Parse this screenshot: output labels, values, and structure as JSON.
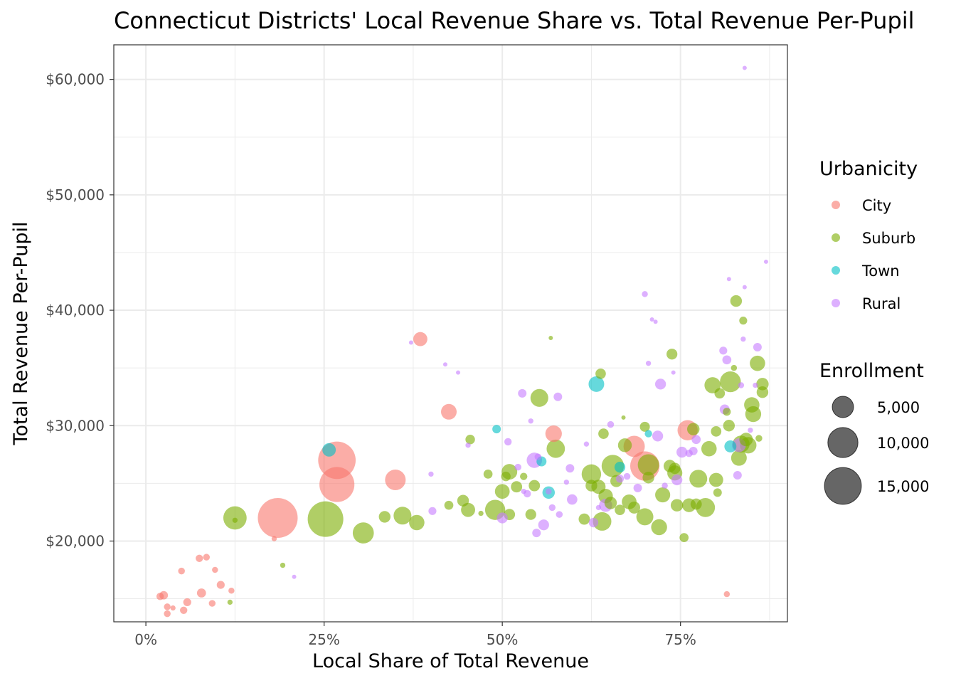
{
  "chart_data": {
    "type": "scatter",
    "title": "Connecticut Districts' Local Revenue Share vs. Total Revenue Per-Pupil",
    "xlabel": "Local Share of Total Revenue",
    "ylabel": "Total Revenue Per-Pupil",
    "xlim": [
      -0.045,
      0.9
    ],
    "ylim": [
      13000,
      63000
    ],
    "x_ticks": [
      0,
      0.25,
      0.5,
      0.75
    ],
    "x_tick_labels": [
      "0%",
      "25%",
      "50%",
      "75%"
    ],
    "y_ticks": [
      20000,
      30000,
      40000,
      50000,
      60000
    ],
    "y_tick_labels": [
      "$20,000",
      "$30,000",
      "$40,000",
      "$50,000",
      "$60,000"
    ],
    "grid": true,
    "legend_placement": "right",
    "color_legend": {
      "title": "Urbanicity",
      "entries": [
        {
          "label": "City",
          "color": "#F8766D"
        },
        {
          "label": "Suburb",
          "color": "#7CAE00"
        },
        {
          "label": "Town",
          "color": "#00BFC4"
        },
        {
          "label": "Rural",
          "color": "#C77CFF"
        }
      ]
    },
    "size_legend": {
      "title": "Enrollment",
      "entries": [
        {
          "label": "5,000",
          "value": 5000
        },
        {
          "label": "10,000",
          "value": 10000
        },
        {
          "label": "15,000",
          "value": 15000
        }
      ]
    },
    "point_opacity": 0.6,
    "series": [
      {
        "name": "City",
        "points": [
          {
            "x": 0.02,
            "y": 15200,
            "e": 600
          },
          {
            "x": 0.025,
            "y": 15300,
            "e": 800
          },
          {
            "x": 0.03,
            "y": 14300,
            "e": 500
          },
          {
            "x": 0.03,
            "y": 13700,
            "e": 500
          },
          {
            "x": 0.038,
            "y": 14200,
            "e": 300
          },
          {
            "x": 0.053,
            "y": 14000,
            "e": 600
          },
          {
            "x": 0.058,
            "y": 14700,
            "e": 700
          },
          {
            "x": 0.05,
            "y": 17400,
            "e": 500
          },
          {
            "x": 0.075,
            "y": 18500,
            "e": 600
          },
          {
            "x": 0.085,
            "y": 18600,
            "e": 500
          },
          {
            "x": 0.078,
            "y": 15500,
            "e": 900
          },
          {
            "x": 0.093,
            "y": 14600,
            "e": 500
          },
          {
            "x": 0.097,
            "y": 17500,
            "e": 400
          },
          {
            "x": 0.105,
            "y": 16200,
            "e": 700
          },
          {
            "x": 0.12,
            "y": 15700,
            "e": 400
          },
          {
            "x": 0.18,
            "y": 20200,
            "e": 300
          },
          {
            "x": 0.185,
            "y": 22000,
            "e": 17500
          },
          {
            "x": 0.268,
            "y": 27000,
            "e": 15500
          },
          {
            "x": 0.268,
            "y": 24900,
            "e": 13500
          },
          {
            "x": 0.35,
            "y": 25300,
            "e": 4700
          },
          {
            "x": 0.385,
            "y": 37500,
            "e": 2200
          },
          {
            "x": 0.425,
            "y": 31200,
            "e": 2700
          },
          {
            "x": 0.572,
            "y": 29300,
            "e": 3000
          },
          {
            "x": 0.685,
            "y": 28200,
            "e": 5000
          },
          {
            "x": 0.7,
            "y": 26500,
            "e": 9500
          },
          {
            "x": 0.76,
            "y": 29600,
            "e": 4500
          },
          {
            "x": 0.815,
            "y": 15400,
            "e": 400
          }
        ]
      },
      {
        "name": "Suburb",
        "points": [
          {
            "x": 0.118,
            "y": 14700,
            "e": 300
          },
          {
            "x": 0.125,
            "y": 21800,
            "e": 300
          },
          {
            "x": 0.125,
            "y": 22000,
            "e": 6000
          },
          {
            "x": 0.192,
            "y": 17900,
            "e": 300
          },
          {
            "x": 0.252,
            "y": 21900,
            "e": 14000
          },
          {
            "x": 0.305,
            "y": 20700,
            "e": 4900
          },
          {
            "x": 0.335,
            "y": 22100,
            "e": 1500
          },
          {
            "x": 0.36,
            "y": 22200,
            "e": 3500
          },
          {
            "x": 0.38,
            "y": 21600,
            "e": 2600
          },
          {
            "x": 0.425,
            "y": 23100,
            "e": 900
          },
          {
            "x": 0.445,
            "y": 23500,
            "e": 1500
          },
          {
            "x": 0.452,
            "y": 22700,
            "e": 2200
          },
          {
            "x": 0.455,
            "y": 28800,
            "e": 1000
          },
          {
            "x": 0.47,
            "y": 22400,
            "e": 300
          },
          {
            "x": 0.48,
            "y": 25800,
            "e": 900
          },
          {
            "x": 0.49,
            "y": 22700,
            "e": 4500
          },
          {
            "x": 0.5,
            "y": 24300,
            "e": 2400
          },
          {
            "x": 0.505,
            "y": 25600,
            "e": 1000
          },
          {
            "x": 0.51,
            "y": 26000,
            "e": 2700
          },
          {
            "x": 0.51,
            "y": 22300,
            "e": 1400
          },
          {
            "x": 0.52,
            "y": 24700,
            "e": 1400
          },
          {
            "x": 0.53,
            "y": 25600,
            "e": 600
          },
          {
            "x": 0.54,
            "y": 22300,
            "e": 1300
          },
          {
            "x": 0.545,
            "y": 24800,
            "e": 1400
          },
          {
            "x": 0.552,
            "y": 32400,
            "e": 3500
          },
          {
            "x": 0.568,
            "y": 37600,
            "e": 200
          },
          {
            "x": 0.575,
            "y": 28000,
            "e": 3700
          },
          {
            "x": 0.615,
            "y": 21900,
            "e": 1400
          },
          {
            "x": 0.625,
            "y": 25800,
            "e": 4200
          },
          {
            "x": 0.625,
            "y": 24800,
            "e": 1500
          },
          {
            "x": 0.635,
            "y": 24700,
            "e": 2200
          },
          {
            "x": 0.638,
            "y": 34500,
            "e": 1200
          },
          {
            "x": 0.64,
            "y": 21700,
            "e": 3800
          },
          {
            "x": 0.642,
            "y": 29300,
            "e": 1200
          },
          {
            "x": 0.645,
            "y": 23900,
            "e": 2300
          },
          {
            "x": 0.652,
            "y": 23300,
            "e": 1700
          },
          {
            "x": 0.655,
            "y": 26500,
            "e": 5500
          },
          {
            "x": 0.66,
            "y": 25200,
            "e": 1600
          },
          {
            "x": 0.665,
            "y": 22700,
            "e": 1200
          },
          {
            "x": 0.67,
            "y": 30700,
            "e": 200
          },
          {
            "x": 0.672,
            "y": 28300,
            "e": 2100
          },
          {
            "x": 0.678,
            "y": 23400,
            "e": 2400
          },
          {
            "x": 0.685,
            "y": 22900,
            "e": 1600
          },
          {
            "x": 0.7,
            "y": 29900,
            "e": 1100
          },
          {
            "x": 0.7,
            "y": 22100,
            "e": 3200
          },
          {
            "x": 0.705,
            "y": 26600,
            "e": 5000
          },
          {
            "x": 0.705,
            "y": 25500,
            "e": 1500
          },
          {
            "x": 0.72,
            "y": 21200,
            "e": 2800
          },
          {
            "x": 0.725,
            "y": 24000,
            "e": 2500
          },
          {
            "x": 0.735,
            "y": 26500,
            "e": 1700
          },
          {
            "x": 0.738,
            "y": 36200,
            "e": 1300
          },
          {
            "x": 0.742,
            "y": 25900,
            "e": 2500
          },
          {
            "x": 0.742,
            "y": 26300,
            "e": 1400
          },
          {
            "x": 0.745,
            "y": 23100,
            "e": 1700
          },
          {
            "x": 0.755,
            "y": 20300,
            "e": 900
          },
          {
            "x": 0.762,
            "y": 23100,
            "e": 2100
          },
          {
            "x": 0.768,
            "y": 29700,
            "e": 1700
          },
          {
            "x": 0.772,
            "y": 23200,
            "e": 1400
          },
          {
            "x": 0.775,
            "y": 25400,
            "e": 3500
          },
          {
            "x": 0.785,
            "y": 22900,
            "e": 4000
          },
          {
            "x": 0.79,
            "y": 28000,
            "e": 2600
          },
          {
            "x": 0.795,
            "y": 33500,
            "e": 2900
          },
          {
            "x": 0.8,
            "y": 25300,
            "e": 2200
          },
          {
            "x": 0.8,
            "y": 29500,
            "e": 1200
          },
          {
            "x": 0.802,
            "y": 24200,
            "e": 800
          },
          {
            "x": 0.805,
            "y": 32800,
            "e": 1200
          },
          {
            "x": 0.815,
            "y": 31200,
            "e": 700
          },
          {
            "x": 0.818,
            "y": 30000,
            "e": 1500
          },
          {
            "x": 0.82,
            "y": 33800,
            "e": 4800
          },
          {
            "x": 0.825,
            "y": 35000,
            "e": 400
          },
          {
            "x": 0.828,
            "y": 40800,
            "e": 1500
          },
          {
            "x": 0.832,
            "y": 27200,
            "e": 2700
          },
          {
            "x": 0.835,
            "y": 28400,
            "e": 3200
          },
          {
            "x": 0.838,
            "y": 39100,
            "e": 700
          },
          {
            "x": 0.842,
            "y": 28800,
            "e": 2000
          },
          {
            "x": 0.845,
            "y": 28300,
            "e": 3000
          },
          {
            "x": 0.85,
            "y": 31800,
            "e": 2600
          },
          {
            "x": 0.852,
            "y": 31000,
            "e": 2800
          },
          {
            "x": 0.858,
            "y": 35400,
            "e": 2600
          },
          {
            "x": 0.86,
            "y": 28900,
            "e": 500
          },
          {
            "x": 0.865,
            "y": 33600,
            "e": 1700
          },
          {
            "x": 0.865,
            "y": 32900,
            "e": 1500
          }
        ]
      },
      {
        "name": "Town",
        "points": [
          {
            "x": 0.257,
            "y": 27900,
            "e": 2000
          },
          {
            "x": 0.492,
            "y": 29700,
            "e": 800
          },
          {
            "x": 0.555,
            "y": 26900,
            "e": 1100
          },
          {
            "x": 0.565,
            "y": 24200,
            "e": 1700
          },
          {
            "x": 0.632,
            "y": 33600,
            "e": 2700
          },
          {
            "x": 0.665,
            "y": 26400,
            "e": 1300
          },
          {
            "x": 0.705,
            "y": 29300,
            "e": 600
          },
          {
            "x": 0.82,
            "y": 28200,
            "e": 1600
          }
        ]
      },
      {
        "name": "Rural",
        "points": [
          {
            "x": 0.208,
            "y": 16900,
            "e": 100
          },
          {
            "x": 0.372,
            "y": 37200,
            "e": 100
          },
          {
            "x": 0.4,
            "y": 25800,
            "e": 300
          },
          {
            "x": 0.402,
            "y": 22600,
            "e": 700
          },
          {
            "x": 0.42,
            "y": 35300,
            "e": 200
          },
          {
            "x": 0.438,
            "y": 34600,
            "e": 200
          },
          {
            "x": 0.452,
            "y": 28300,
            "e": 300
          },
          {
            "x": 0.5,
            "y": 22000,
            "e": 1300
          },
          {
            "x": 0.508,
            "y": 28600,
            "e": 600
          },
          {
            "x": 0.522,
            "y": 26400,
            "e": 500
          },
          {
            "x": 0.528,
            "y": 32800,
            "e": 800
          },
          {
            "x": 0.53,
            "y": 24300,
            "e": 300
          },
          {
            "x": 0.535,
            "y": 24100,
            "e": 600
          },
          {
            "x": 0.54,
            "y": 30400,
            "e": 300
          },
          {
            "x": 0.545,
            "y": 27000,
            "e": 2600
          },
          {
            "x": 0.548,
            "y": 20700,
            "e": 800
          },
          {
            "x": 0.55,
            "y": 27300,
            "e": 500
          },
          {
            "x": 0.558,
            "y": 21400,
            "e": 1300
          },
          {
            "x": 0.565,
            "y": 24300,
            "e": 400
          },
          {
            "x": 0.57,
            "y": 22900,
            "e": 500
          },
          {
            "x": 0.578,
            "y": 32500,
            "e": 800
          },
          {
            "x": 0.58,
            "y": 22300,
            "e": 500
          },
          {
            "x": 0.59,
            "y": 25100,
            "e": 300
          },
          {
            "x": 0.595,
            "y": 26300,
            "e": 800
          },
          {
            "x": 0.598,
            "y": 23600,
            "e": 1200
          },
          {
            "x": 0.618,
            "y": 28400,
            "e": 300
          },
          {
            "x": 0.628,
            "y": 21600,
            "e": 1000
          },
          {
            "x": 0.635,
            "y": 22900,
            "e": 300
          },
          {
            "x": 0.645,
            "y": 23100,
            "e": 1900
          },
          {
            "x": 0.652,
            "y": 30100,
            "e": 500
          },
          {
            "x": 0.665,
            "y": 25400,
            "e": 700
          },
          {
            "x": 0.675,
            "y": 25600,
            "e": 500
          },
          {
            "x": 0.69,
            "y": 24600,
            "e": 800
          },
          {
            "x": 0.7,
            "y": 41400,
            "e": 400
          },
          {
            "x": 0.705,
            "y": 35400,
            "e": 300
          },
          {
            "x": 0.71,
            "y": 39200,
            "e": 200
          },
          {
            "x": 0.715,
            "y": 39000,
            "e": 100
          },
          {
            "x": 0.718,
            "y": 29100,
            "e": 1300
          },
          {
            "x": 0.722,
            "y": 33600,
            "e": 1300
          },
          {
            "x": 0.728,
            "y": 24800,
            "e": 400
          },
          {
            "x": 0.74,
            "y": 34600,
            "e": 100
          },
          {
            "x": 0.745,
            "y": 25300,
            "e": 1300
          },
          {
            "x": 0.752,
            "y": 27700,
            "e": 1300
          },
          {
            "x": 0.762,
            "y": 27600,
            "e": 600
          },
          {
            "x": 0.768,
            "y": 27800,
            "e": 800
          },
          {
            "x": 0.772,
            "y": 28800,
            "e": 900
          },
          {
            "x": 0.81,
            "y": 36500,
            "e": 700
          },
          {
            "x": 0.812,
            "y": 31400,
            "e": 1100
          },
          {
            "x": 0.815,
            "y": 35700,
            "e": 900
          },
          {
            "x": 0.818,
            "y": 42700,
            "e": 100
          },
          {
            "x": 0.83,
            "y": 25700,
            "e": 800
          },
          {
            "x": 0.832,
            "y": 28300,
            "e": 2100
          },
          {
            "x": 0.835,
            "y": 33500,
            "e": 400
          },
          {
            "x": 0.838,
            "y": 37500,
            "e": 300
          },
          {
            "x": 0.84,
            "y": 42000,
            "e": 200
          },
          {
            "x": 0.84,
            "y": 61000,
            "e": 200
          },
          {
            "x": 0.848,
            "y": 29600,
            "e": 300
          },
          {
            "x": 0.855,
            "y": 33500,
            "e": 300
          },
          {
            "x": 0.858,
            "y": 36800,
            "e": 800
          },
          {
            "x": 0.87,
            "y": 44200,
            "e": 100
          }
        ]
      }
    ]
  }
}
